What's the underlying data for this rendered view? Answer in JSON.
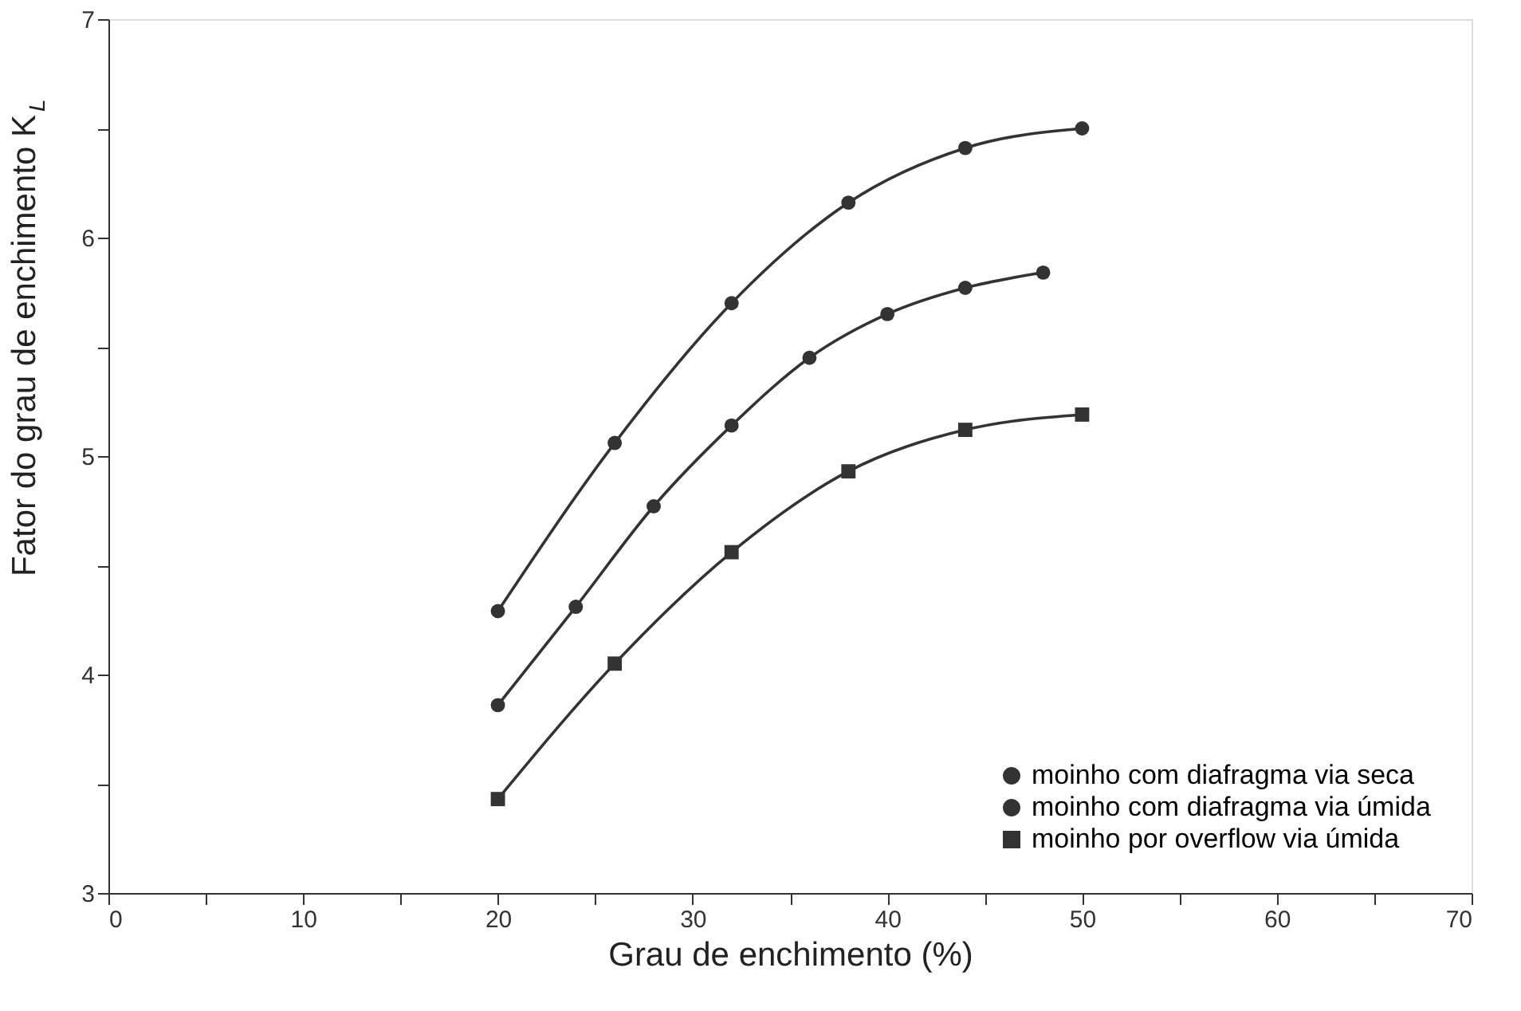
{
  "chart_data": {
    "type": "line",
    "xlabel": "Grau de enchimento (%)",
    "ylabel": "Fator do grau de enchimento K$_{L}$",
    "xlim": [
      0,
      70
    ],
    "ylim": [
      3,
      7
    ],
    "xticks": [
      0,
      {
        "value": 5,
        "label": null
      },
      10,
      {
        "value": 15,
        "label": null
      },
      20,
      {
        "value": 25,
        "label": null
      },
      30,
      {
        "value": 35,
        "label": null
      },
      40,
      {
        "value": 45,
        "label": null
      },
      50,
      {
        "value": 55,
        "label": null
      },
      60,
      {
        "value": 65,
        "label": null
      },
      70
    ],
    "yticks": [
      3,
      {
        "value": 3.5,
        "label": null
      },
      4,
      {
        "value": 4.5,
        "label": null
      },
      5,
      {
        "value": 5.5,
        "label": null
      },
      6,
      {
        "value": 6.5,
        "label": null
      },
      7
    ],
    "grid": false,
    "legend": "bottom right",
    "line_style": "solid",
    "series": [
      {
        "name": "moinho com diafragma via seca",
        "color": "#333333",
        "marker": "circle",
        "x": [
          20,
          26,
          32,
          38,
          44,
          50
        ],
        "values": [
          4.29,
          5.06,
          5.7,
          6.16,
          6.41,
          6.5
        ]
      },
      {
        "name": "moinho com diafragma via úmida",
        "color": "#333333",
        "marker": "circle",
        "x": [
          20,
          24,
          28,
          32,
          36,
          40,
          44,
          48
        ],
        "values": [
          3.86,
          4.31,
          4.77,
          5.14,
          5.45,
          5.65,
          5.77,
          5.84
        ]
      },
      {
        "name": "moinho por overflow via úmida",
        "color": "#333333",
        "marker": "square",
        "x": [
          20,
          26,
          32,
          38,
          44,
          50
        ],
        "values": [
          3.43,
          4.05,
          4.56,
          4.93,
          5.12,
          5.19
        ]
      }
    ]
  }
}
